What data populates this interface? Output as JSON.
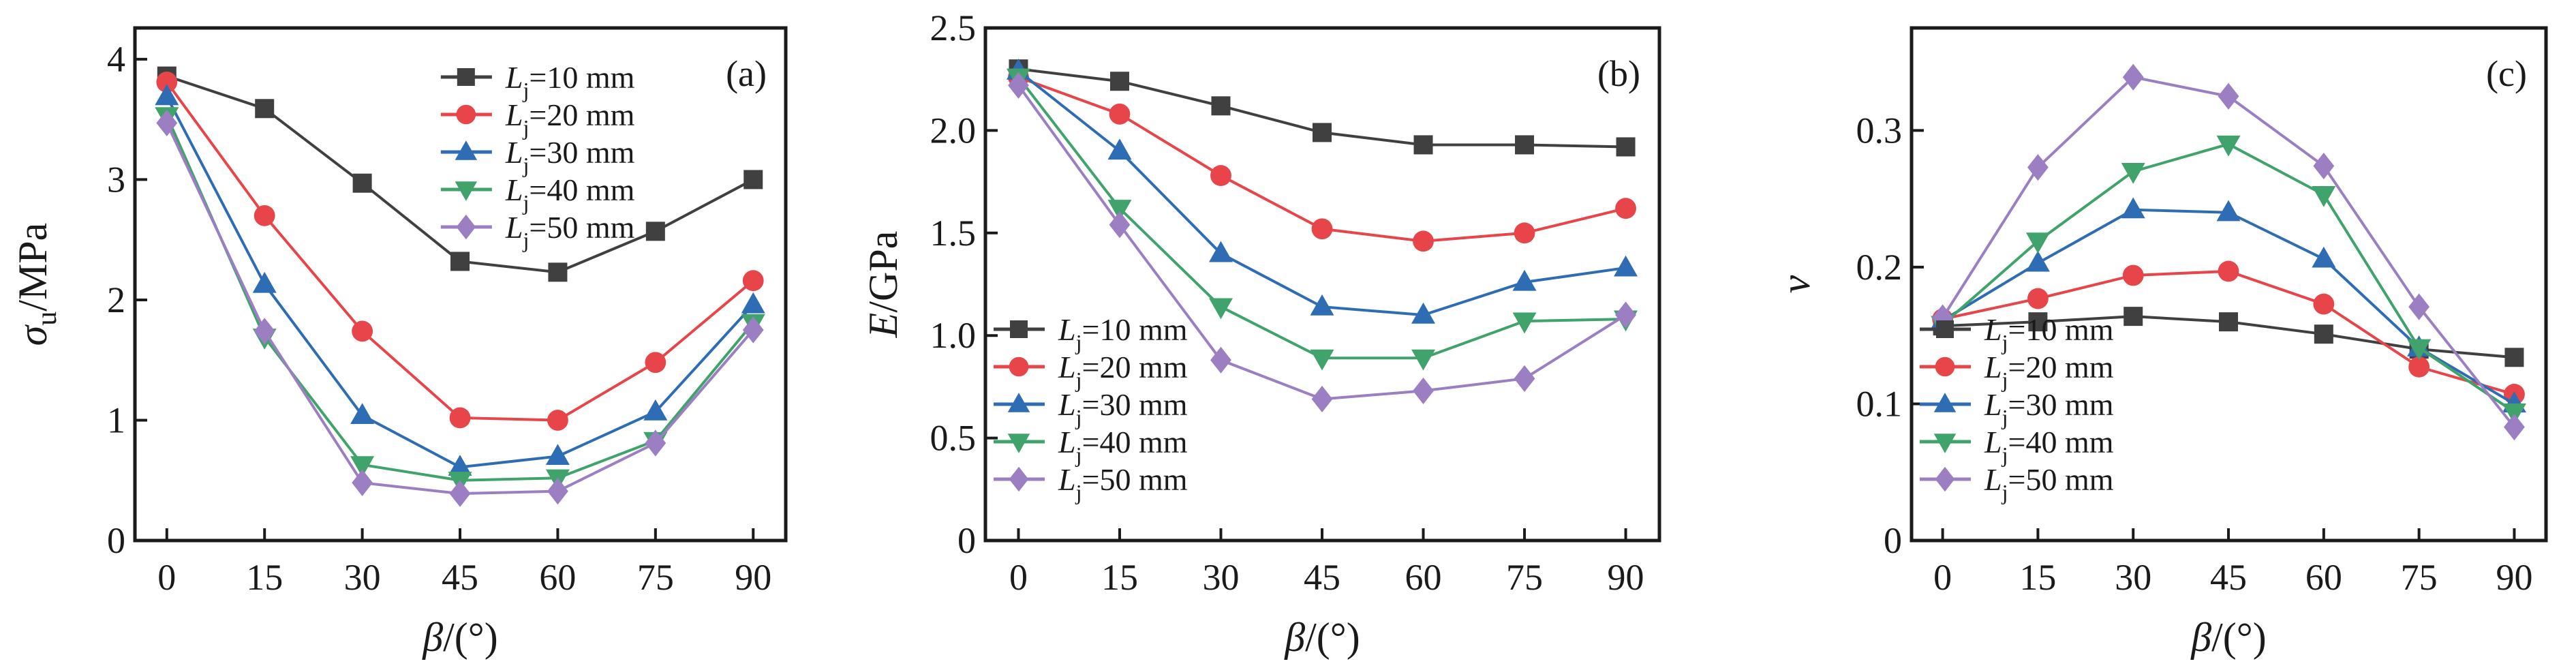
{
  "colors": {
    "10": "#404040",
    "20": "#e8454a",
    "30": "#2e6db4",
    "40": "#3fa36b",
    "50": "#9b7fc2",
    "axis": "#1a1a1a"
  },
  "chart_data": [
    {
      "type": "line",
      "panel_label": "(a)",
      "x": [
        0,
        15,
        30,
        45,
        60,
        75,
        90
      ],
      "xticks": [
        "0",
        "15",
        "30",
        "45",
        "60",
        "75",
        "90"
      ],
      "xlabel": {
        "main": "β",
        "sub": "",
        "rest": "/(°)"
      },
      "ylabel": {
        "main": "σ",
        "sub": "u",
        "rest": "/MPa"
      },
      "ylim": [
        0,
        4.26
      ],
      "yticks": [
        0,
        1,
        2,
        3,
        4
      ],
      "ytick_labels": [
        "0",
        "1",
        "2",
        "3",
        "4"
      ],
      "legend": "top-right",
      "series": [
        {
          "name": "Lj=10 mm",
          "marker": "square",
          "color_key": "10",
          "values": [
            3.86,
            3.59,
            2.97,
            2.32,
            2.23,
            2.57,
            3.0
          ]
        },
        {
          "name": "Lj=20 mm",
          "marker": "circle",
          "color_key": "20",
          "values": [
            3.81,
            2.7,
            1.74,
            1.02,
            1.0,
            1.48,
            2.16
          ]
        },
        {
          "name": "Lj=30 mm",
          "marker": "triangle-up",
          "color_key": "30",
          "values": [
            3.69,
            2.13,
            1.04,
            0.61,
            0.7,
            1.07,
            1.96
          ]
        },
        {
          "name": "Lj=40 mm",
          "marker": "triangle-down",
          "color_key": "40",
          "values": [
            3.53,
            1.69,
            0.63,
            0.5,
            0.52,
            0.83,
            1.81
          ]
        },
        {
          "name": "Lj=50 mm",
          "marker": "diamond",
          "color_key": "50",
          "values": [
            3.47,
            1.74,
            0.48,
            0.39,
            0.41,
            0.81,
            1.75
          ]
        }
      ]
    },
    {
      "type": "line",
      "panel_label": "(b)",
      "x": [
        0,
        15,
        30,
        45,
        60,
        75,
        90
      ],
      "xticks": [
        "0",
        "15",
        "30",
        "45",
        "60",
        "75",
        "90"
      ],
      "xlabel": {
        "main": "β",
        "sub": "",
        "rest": "/(°)"
      },
      "ylabel": {
        "main": "E",
        "sub": "",
        "rest": "/GPa"
      },
      "ylim": [
        0,
        2.5
      ],
      "yticks": [
        0,
        0.5,
        1.0,
        1.5,
        2.0,
        2.5
      ],
      "ytick_labels": [
        "0",
        "0.5",
        "1.0",
        "1.5",
        "2.0",
        "2.5"
      ],
      "legend": "bottom-left",
      "series": [
        {
          "name": "Lj=10 mm",
          "marker": "square",
          "color_key": "10",
          "values": [
            2.3,
            2.24,
            2.12,
            1.99,
            1.93,
            1.93,
            1.92
          ]
        },
        {
          "name": "Lj=20 mm",
          "marker": "circle",
          "color_key": "20",
          "values": [
            2.26,
            2.08,
            1.78,
            1.52,
            1.46,
            1.5,
            1.62
          ]
        },
        {
          "name": "Lj=30 mm",
          "marker": "triangle-up",
          "color_key": "30",
          "values": [
            2.29,
            1.9,
            1.4,
            1.14,
            1.1,
            1.26,
            1.33
          ]
        },
        {
          "name": "Lj=40 mm",
          "marker": "triangle-down",
          "color_key": "40",
          "values": [
            2.26,
            1.62,
            1.14,
            0.89,
            0.89,
            1.07,
            1.08
          ]
        },
        {
          "name": "Lj=50 mm",
          "marker": "diamond",
          "color_key": "50",
          "values": [
            2.22,
            1.54,
            0.88,
            0.69,
            0.73,
            0.79,
            1.1
          ]
        }
      ]
    },
    {
      "type": "line",
      "panel_label": "(c)",
      "x": [
        0,
        15,
        30,
        45,
        60,
        75,
        90
      ],
      "xticks": [
        "0",
        "15",
        "30",
        "45",
        "60",
        "75",
        "90"
      ],
      "xlabel": {
        "main": "β",
        "sub": "",
        "rest": "/(°)"
      },
      "ylabel": {
        "main": "ν",
        "sub": "",
        "rest": ""
      },
      "ylim": [
        0,
        0.375
      ],
      "yticks": [
        0,
        0.1,
        0.2,
        0.3
      ],
      "ytick_labels": [
        "0",
        "0.1",
        "0.2",
        "0.3"
      ],
      "legend": "bottom-left",
      "series": [
        {
          "name": "Lj=10 mm",
          "marker": "square",
          "color_key": "10",
          "values": [
            0.157,
            0.16,
            0.164,
            0.16,
            0.151,
            0.14,
            0.134
          ]
        },
        {
          "name": "Lj=20 mm",
          "marker": "circle",
          "color_key": "20",
          "values": [
            0.162,
            0.177,
            0.194,
            0.197,
            0.173,
            0.127,
            0.107
          ]
        },
        {
          "name": "Lj=30 mm",
          "marker": "triangle-up",
          "color_key": "30",
          "values": [
            0.161,
            0.203,
            0.242,
            0.24,
            0.206,
            0.141,
            0.1
          ]
        },
        {
          "name": "Lj=40 mm",
          "marker": "triangle-down",
          "color_key": "40",
          "values": [
            0.158,
            0.219,
            0.27,
            0.29,
            0.253,
            0.141,
            0.094
          ]
        },
        {
          "name": "Lj=50 mm",
          "marker": "diamond",
          "color_key": "50",
          "values": [
            0.163,
            0.273,
            0.339,
            0.325,
            0.274,
            0.171,
            0.083
          ]
        }
      ]
    }
  ]
}
